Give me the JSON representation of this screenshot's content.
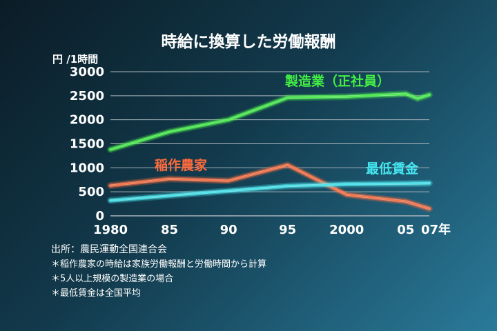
{
  "chart_data": {
    "type": "line",
    "title": "時給に換算した労働報酬",
    "ylabel": "円 /1時間",
    "xlabel": "",
    "ylim": [
      0,
      3000
    ],
    "xlim": [
      1980,
      2007
    ],
    "y_ticks": [
      "0",
      "500",
      "1000",
      "1500",
      "2000",
      "2500",
      "3000"
    ],
    "x_ticks": [
      {
        "x": 1980,
        "label": "1980"
      },
      {
        "x": 1985,
        "label": "85"
      },
      {
        "x": 1990,
        "label": "90"
      },
      {
        "x": 1995,
        "label": "95"
      },
      {
        "x": 2000,
        "label": "2000"
      },
      {
        "x": 2005,
        "label": "05"
      },
      {
        "x": 2007,
        "label": "07年"
      }
    ],
    "grid": true,
    "series": [
      {
        "name": "製造業（正社員）",
        "color": "#44ee44",
        "x": [
          1980,
          1985,
          1990,
          1995,
          2000,
          2005,
          2006,
          2007
        ],
        "y": [
          1380,
          1750,
          2000,
          2460,
          2480,
          2540,
          2440,
          2520
        ]
      },
      {
        "name": "稲作農家",
        "color": "#ff6a3d",
        "x": [
          1980,
          1985,
          1990,
          1995,
          2000,
          2005,
          2007
        ],
        "y": [
          630,
          770,
          730,
          1060,
          440,
          300,
          150
        ]
      },
      {
        "name": "最低賃金",
        "color": "#44e6f0",
        "x": [
          1980,
          1985,
          1990,
          1995,
          2000,
          2005,
          2007
        ],
        "y": [
          320,
          420,
          520,
          620,
          660,
          670,
          680
        ]
      }
    ]
  },
  "notes": {
    "source": "出所：農民運動全国連合会",
    "note1": "＊稲作農家の時給は家族労働報酬と労働時間から計算",
    "note2": "＊5人以上規模の製造業の場合",
    "note3": "＊最低賃金は全国平均"
  }
}
